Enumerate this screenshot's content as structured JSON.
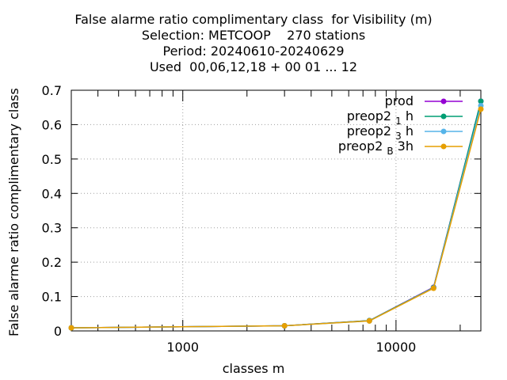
{
  "title_lines": [
    "False alarme ratio complimentary class  for Visibility (m)",
    "Selection: METCOOP    270 stations",
    "Period: 20240610-20240629",
    "Used  00,06,12,18 + 00 01 ... 12"
  ],
  "chart_data": {
    "type": "line",
    "title": "False alarme ratio complimentary class  for Visibility (m)",
    "xlabel": "classes m",
    "ylabel": "False alarme ratio complimentary class",
    "x_scale": "log",
    "xlim": [
      300,
      25000
    ],
    "ylim": [
      0,
      0.7
    ],
    "x_ticks": [
      {
        "value": 1000,
        "label": "1000"
      },
      {
        "value": 10000,
        "label": "10000"
      }
    ],
    "y_ticks": [
      {
        "value": 0,
        "label": "0"
      },
      {
        "value": 0.1,
        "label": "0.1"
      },
      {
        "value": 0.2,
        "label": "0.2"
      },
      {
        "value": 0.3,
        "label": "0.3"
      },
      {
        "value": 0.4,
        "label": "0.4"
      },
      {
        "value": 0.5,
        "label": "0.5"
      },
      {
        "value": 0.6,
        "label": "0.6"
      },
      {
        "value": 0.7,
        "label": "0.7"
      }
    ],
    "grid": true,
    "legend_position": "top-right",
    "x": [
      300,
      3000,
      7500,
      15000,
      25000
    ],
    "series": [
      {
        "name": "prod",
        "name_parts": [
          "prod"
        ],
        "color": "#9400d3",
        "values": [
          0.009,
          0.015,
          0.03,
          0.127,
          0.668
        ]
      },
      {
        "name": "preop2_1h",
        "name_parts": [
          "preop2",
          "1",
          "h"
        ],
        "color": "#009e73",
        "values": [
          0.009,
          0.015,
          0.03,
          0.126,
          0.668
        ]
      },
      {
        "name": "preop2_3h",
        "name_parts": [
          "preop2",
          "3",
          "h"
        ],
        "color": "#56b4e9",
        "values": [
          0.009,
          0.015,
          0.029,
          0.125,
          0.655
        ]
      },
      {
        "name": "preop2_B3h",
        "name_parts": [
          "preop2",
          "B",
          "3h"
        ],
        "color": "#e69f00",
        "values": [
          0.009,
          0.015,
          0.029,
          0.124,
          0.645
        ]
      }
    ]
  }
}
